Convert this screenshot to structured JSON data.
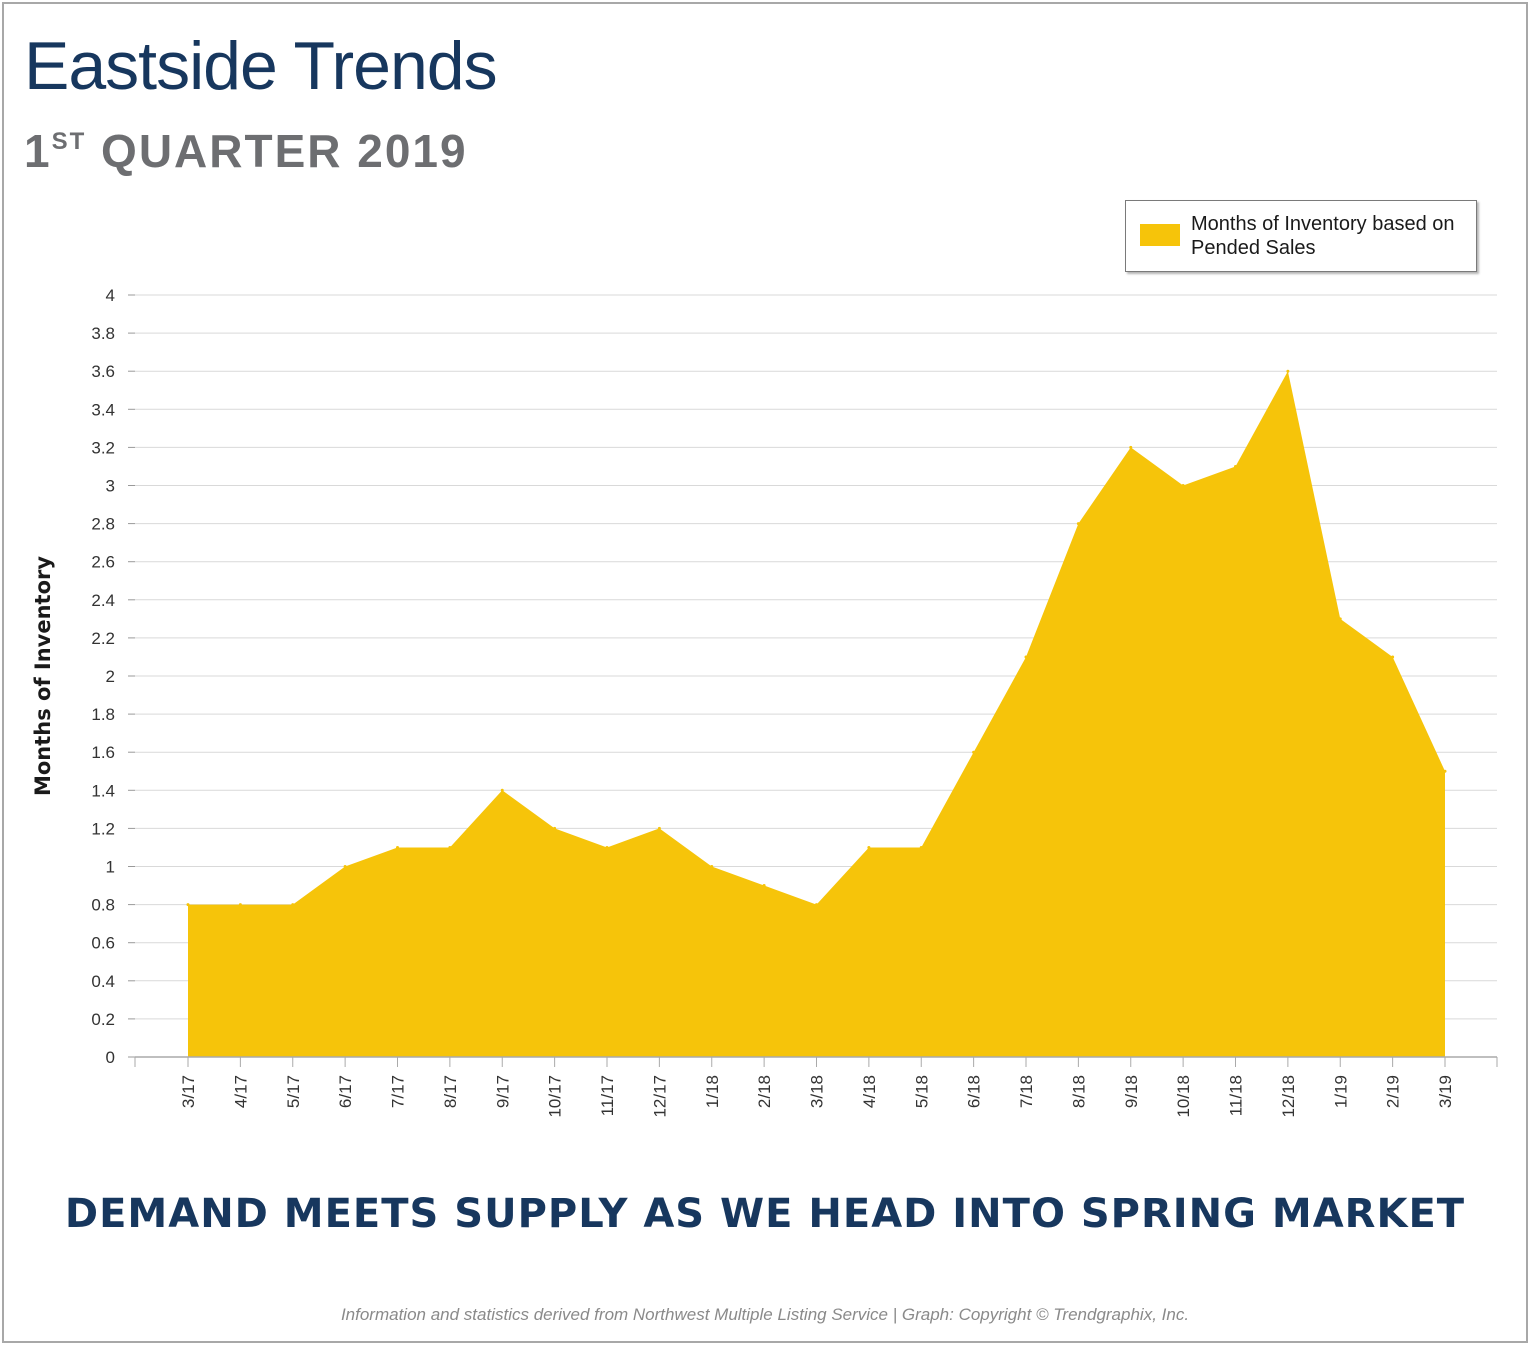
{
  "header": {
    "title": "Eastside Trends",
    "subtitle_number": "1",
    "subtitle_suffix": "ST",
    "subtitle_rest": "QUARTER 2019"
  },
  "chart_data": {
    "type": "area",
    "title": "",
    "xlabel": "",
    "ylabel": "Months of Inventory",
    "ylim": [
      0,
      4
    ],
    "yticks": [
      "0",
      "0.2",
      "0.4",
      "0.6",
      "0.8",
      "1",
      "1.2",
      "1.4",
      "1.6",
      "1.8",
      "2",
      "2.2",
      "2.4",
      "2.6",
      "2.8",
      "3",
      "3.2",
      "3.4",
      "3.6",
      "3.8",
      "4"
    ],
    "grid": true,
    "legend_position": "top-right",
    "categories": [
      "3/17",
      "4/17",
      "5/17",
      "6/17",
      "7/17",
      "8/17",
      "9/17",
      "10/17",
      "11/17",
      "12/17",
      "1/18",
      "2/18",
      "3/18",
      "4/18",
      "5/18",
      "6/18",
      "7/18",
      "8/18",
      "9/18",
      "10/18",
      "11/18",
      "12/18",
      "1/19",
      "2/19",
      "3/19"
    ],
    "series": [
      {
        "name": "Months of Inventory based on Pended Sales",
        "color": "#f6c40a",
        "values": [
          0.8,
          0.8,
          0.8,
          1.0,
          1.1,
          1.1,
          1.4,
          1.2,
          1.1,
          1.2,
          1.0,
          0.9,
          0.8,
          1.1,
          1.1,
          1.6,
          2.1,
          2.8,
          3.2,
          3.0,
          3.1,
          3.6,
          2.3,
          2.1,
          1.5
        ]
      }
    ]
  },
  "headline": "DEMAND MEETS SUPPLY AS WE HEAD INTO SPRING MARKET",
  "footer": "Information and statistics derived from Northwest Multiple Listing Service  |  Graph: Copyright © Trendgraphix, Inc."
}
